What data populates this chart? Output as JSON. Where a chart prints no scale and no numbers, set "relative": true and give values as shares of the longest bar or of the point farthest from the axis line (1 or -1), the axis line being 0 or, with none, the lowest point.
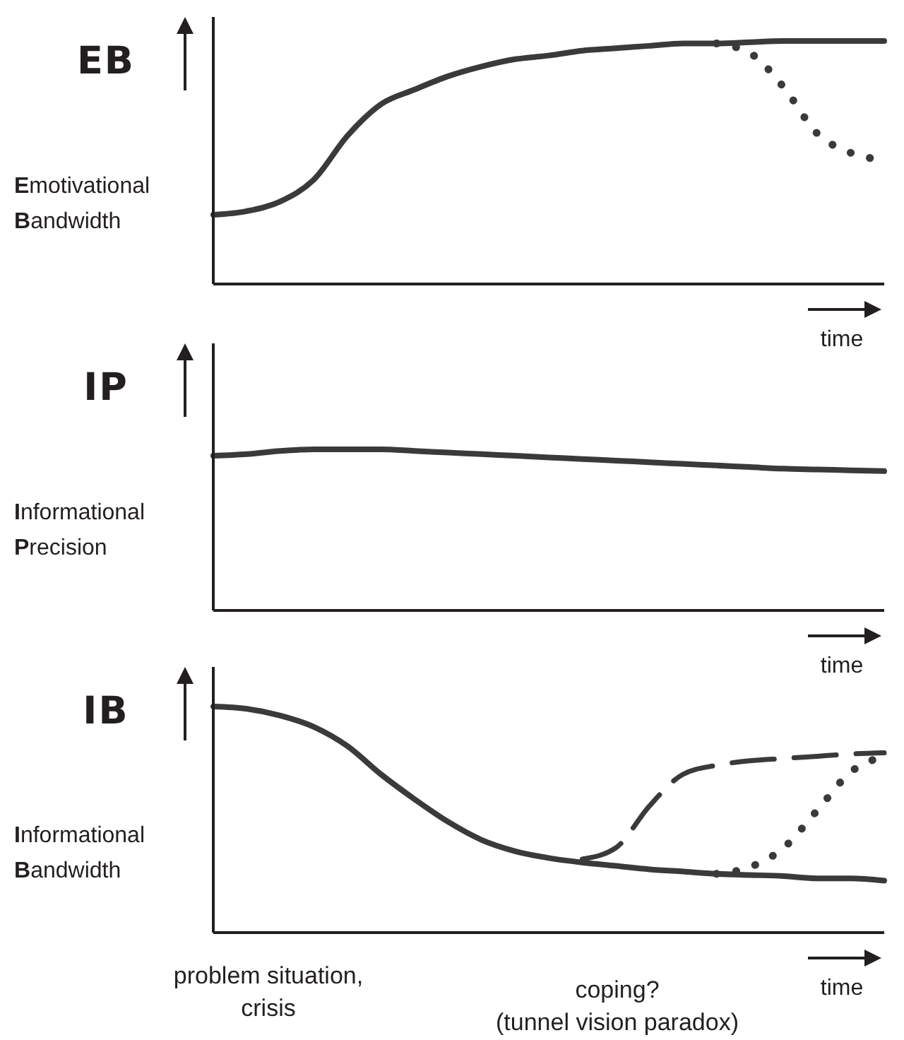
{
  "chart_data": [
    {
      "type": "line",
      "relative": true,
      "title": "EB",
      "ylabel": "Emotivational Bandwidth",
      "xlabel": "time",
      "categories": [
        null,
        null,
        null,
        null,
        null,
        null,
        null,
        null,
        null,
        null,
        null,
        null,
        null,
        null,
        null,
        null,
        null,
        null,
        null,
        null,
        null
      ],
      "series": [
        {
          "color": "#3a3a3a",
          "line_style": "solid",
          "values": [
            0.285,
            0.3,
            0.34,
            0.43,
            0.61,
            0.74,
            0.8,
            0.855,
            0.895,
            0.925,
            0.94,
            0.96,
            0.97,
            0.98,
            0.99,
            0.99,
            0.995,
            1,
            1,
            1,
            1
          ]
        },
        {
          "color": "#3a3a3a",
          "line_style": "dotted",
          "values": [
            null,
            null,
            null,
            null,
            null,
            null,
            null,
            null,
            null,
            null,
            null,
            null,
            null,
            null,
            null,
            0.99,
            0.95,
            0.81,
            0.62,
            0.54,
            0.51
          ]
        }
      ]
    },
    {
      "type": "line",
      "relative": true,
      "title": "IP",
      "ylabel": "Informational Precision",
      "xlabel": "time",
      "categories": [
        null,
        null,
        null,
        null,
        null,
        null,
        null,
        null,
        null,
        null,
        null,
        null,
        null,
        null,
        null,
        null,
        null,
        null,
        null,
        null,
        null
      ],
      "series": [
        {
          "color": "#3a3a3a",
          "line_style": "solid",
          "values": [
            0.96,
            0.97,
            0.99,
            1,
            1,
            1,
            0.99,
            0.98,
            0.97,
            0.96,
            0.95,
            0.94,
            0.93,
            0.92,
            0.91,
            0.9,
            0.89,
            0.88,
            0.875,
            0.87,
            0.865
          ]
        }
      ]
    },
    {
      "type": "line",
      "relative": true,
      "title": "IB",
      "ylabel": "Informational Bandwidth",
      "xlabel": "time",
      "categories": [
        null,
        null,
        null,
        null,
        null,
        null,
        null,
        null,
        null,
        null,
        null,
        null,
        null,
        null,
        null,
        null,
        null,
        null,
        null,
        null,
        null
      ],
      "annotations": [
        "problem situation,\ncrisis",
        "coping?\n(tunnel vision paradox)"
      ],
      "series": [
        {
          "color": "#3a3a3a",
          "line_style": "solid",
          "values": [
            1,
            0.99,
            0.96,
            0.91,
            0.825,
            0.7,
            0.59,
            0.49,
            0.41,
            0.36,
            0.33,
            0.31,
            0.295,
            0.28,
            0.27,
            0.26,
            0.255,
            0.25,
            0.24,
            0.24,
            0.23
          ]
        },
        {
          "color": "#3a3a3a",
          "line_style": "dashed",
          "values": [
            null,
            null,
            null,
            null,
            null,
            null,
            null,
            null,
            null,
            null,
            null,
            0.325,
            0.375,
            0.56,
            0.7,
            0.74,
            0.76,
            0.77,
            0.78,
            0.79,
            0.795
          ]
        },
        {
          "color": "#3a3a3a",
          "line_style": "dotted",
          "values": [
            null,
            null,
            null,
            null,
            null,
            null,
            null,
            null,
            null,
            null,
            null,
            null,
            null,
            null,
            null,
            0.26,
            0.29,
            0.375,
            0.54,
            0.71,
            0.78
          ]
        }
      ]
    }
  ]
}
